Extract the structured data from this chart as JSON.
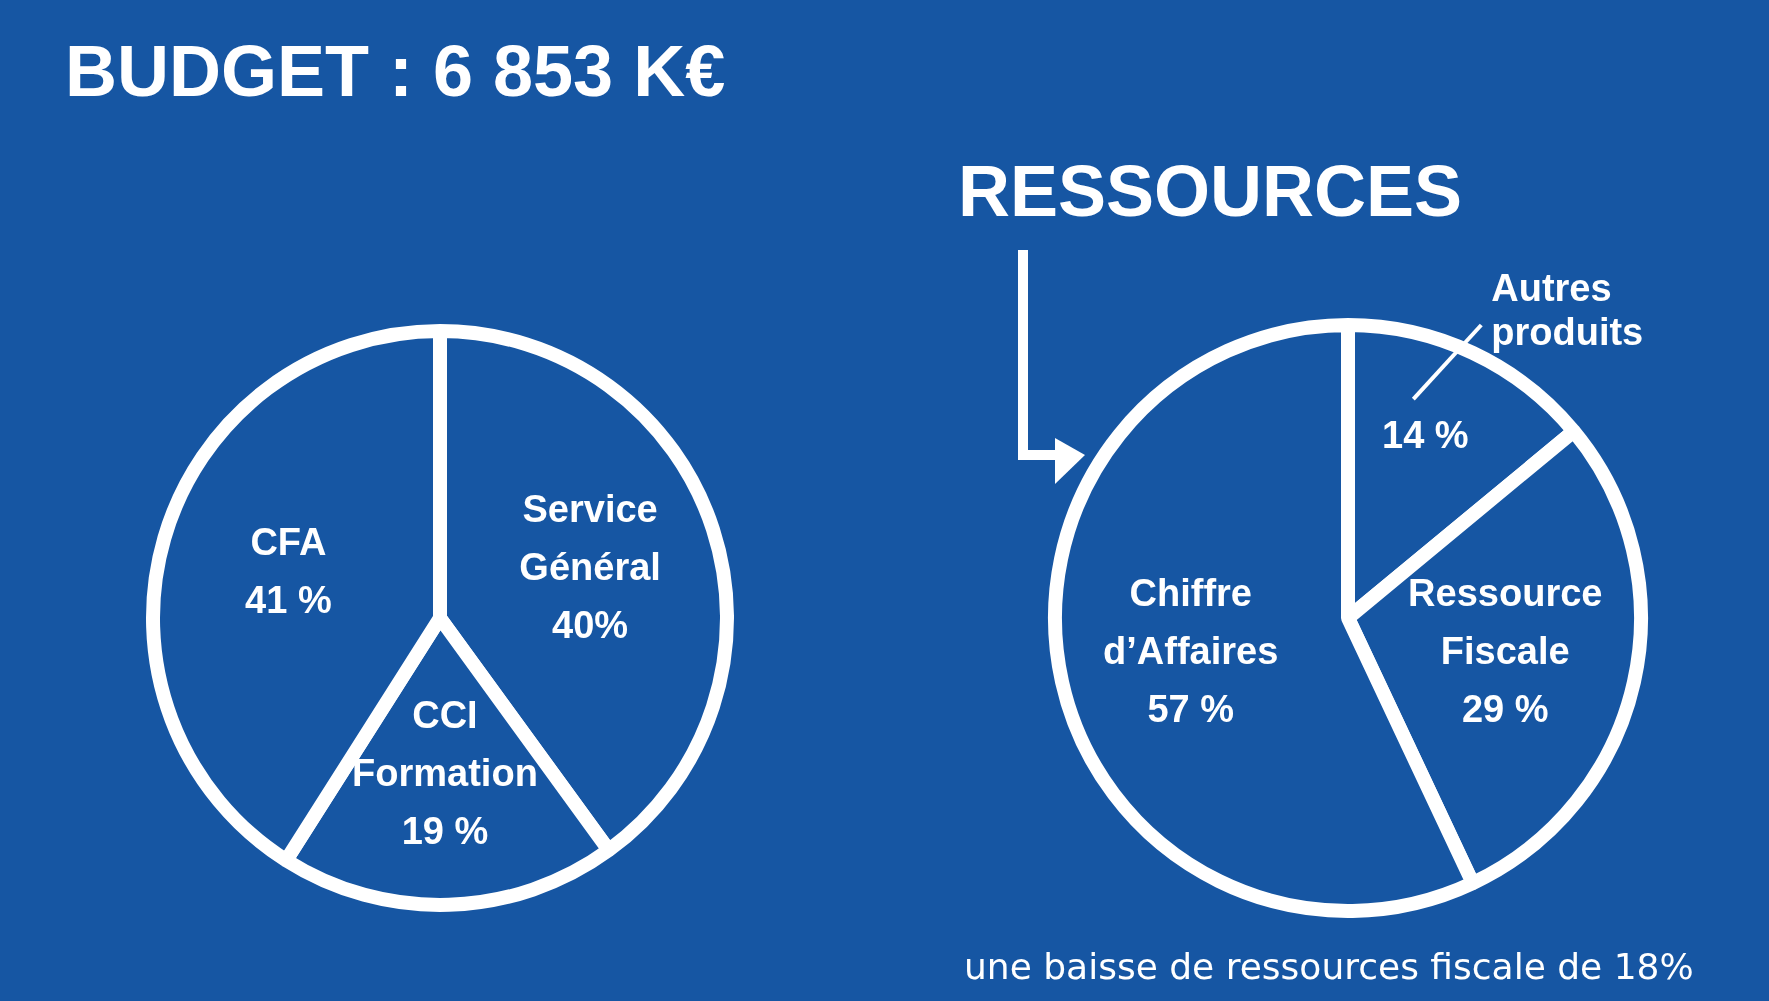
{
  "chart_data": [
    {
      "type": "pie",
      "title": "BUDGET : 6 853 K€",
      "categories": [
        "Service Général",
        "CCI Formation",
        "CFA"
      ],
      "values": [
        40,
        19,
        41
      ],
      "colors": [
        "#1656a3",
        "#1656a3",
        "#1656a3"
      ],
      "value_labels": [
        "40%",
        "19 %",
        "41 %"
      ],
      "legend": false
    },
    {
      "type": "pie",
      "title": "RESSOURCES",
      "categories": [
        "Autres produits",
        "Ressource Fiscale",
        "Chiffre d’Affaires"
      ],
      "values": [
        14,
        29,
        57
      ],
      "colors": [
        "#1656a3",
        "#1656a3",
        "#1656a3"
      ],
      "value_labels": [
        "14 %",
        "29 %",
        "57 %"
      ],
      "legend": false,
      "annotations": [
        "une baisse de ressources fiscale de 18%"
      ]
    }
  ]
}
